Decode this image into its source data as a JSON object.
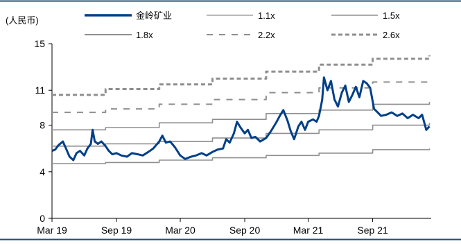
{
  "chart_data": {
    "type": "line",
    "unit_label": "(人民币)",
    "yticks": [
      "0",
      "4",
      "8",
      "11",
      "15"
    ],
    "ylim": [
      0,
      15
    ],
    "xticks": [
      "Mar 19",
      "Sep 19",
      "Mar 20",
      "Sep 20",
      "Mar 21",
      "Sep 21"
    ],
    "x_start": "2019-03",
    "x_end": "2022-02",
    "grid": false,
    "legend_position": "top",
    "colors": {
      "price": "#003f88",
      "band_solid": "#8f8f8f",
      "band_dashed": "#8f8f8f",
      "frame": "#1f4e79"
    },
    "series": [
      {
        "name": "金岭矿业",
        "style": "price",
        "points": [
          [
            "2019-03-01",
            5.8
          ],
          [
            "2019-03-10",
            5.9
          ],
          [
            "2019-03-20",
            6.3
          ],
          [
            "2019-04-01",
            6.6
          ],
          [
            "2019-04-10",
            6.0
          ],
          [
            "2019-04-20",
            5.3
          ],
          [
            "2019-05-01",
            5.0
          ],
          [
            "2019-05-10",
            5.6
          ],
          [
            "2019-05-20",
            5.8
          ],
          [
            "2019-06-01",
            5.4
          ],
          [
            "2019-06-10",
            6.0
          ],
          [
            "2019-06-20",
            6.4
          ],
          [
            "2019-06-25",
            7.6
          ],
          [
            "2019-07-01",
            6.6
          ],
          [
            "2019-07-10",
            6.4
          ],
          [
            "2019-07-20",
            6.6
          ],
          [
            "2019-08-01",
            6.2
          ],
          [
            "2019-08-10",
            5.8
          ],
          [
            "2019-08-20",
            5.5
          ],
          [
            "2019-09-01",
            5.6
          ],
          [
            "2019-09-15",
            5.4
          ],
          [
            "2019-10-01",
            5.3
          ],
          [
            "2019-10-15",
            5.6
          ],
          [
            "2019-11-01",
            5.5
          ],
          [
            "2019-11-15",
            5.4
          ],
          [
            "2019-12-01",
            5.7
          ],
          [
            "2019-12-15",
            6.0
          ],
          [
            "2020-01-01",
            6.6
          ],
          [
            "2020-01-10",
            7.1
          ],
          [
            "2020-01-20",
            6.5
          ],
          [
            "2020-02-01",
            6.6
          ],
          [
            "2020-02-15",
            6.1
          ],
          [
            "2020-03-01",
            5.4
          ],
          [
            "2020-03-15",
            5.1
          ],
          [
            "2020-04-01",
            5.3
          ],
          [
            "2020-04-15",
            5.4
          ],
          [
            "2020-05-01",
            5.6
          ],
          [
            "2020-05-15",
            5.4
          ],
          [
            "2020-06-01",
            5.7
          ],
          [
            "2020-06-15",
            5.9
          ],
          [
            "2020-07-01",
            6.0
          ],
          [
            "2020-07-10",
            6.8
          ],
          [
            "2020-07-20",
            6.5
          ],
          [
            "2020-08-01",
            7.3
          ],
          [
            "2020-08-10",
            8.3
          ],
          [
            "2020-08-20",
            7.8
          ],
          [
            "2020-09-01",
            7.3
          ],
          [
            "2020-09-10",
            7.6
          ],
          [
            "2020-09-20",
            6.9
          ],
          [
            "2020-10-01",
            7.0
          ],
          [
            "2020-10-15",
            6.6
          ],
          [
            "2020-11-01",
            6.9
          ],
          [
            "2020-11-15",
            7.5
          ],
          [
            "2020-12-01",
            8.3
          ],
          [
            "2020-12-10",
            8.8
          ],
          [
            "2020-12-20",
            9.3
          ],
          [
            "2021-01-01",
            8.4
          ],
          [
            "2021-01-10",
            7.5
          ],
          [
            "2021-01-20",
            6.8
          ],
          [
            "2021-02-01",
            7.9
          ],
          [
            "2021-02-10",
            8.3
          ],
          [
            "2021-02-20",
            7.6
          ],
          [
            "2021-03-01",
            8.3
          ],
          [
            "2021-03-15",
            8.5
          ],
          [
            "2021-03-25",
            8.3
          ],
          [
            "2021-04-01",
            8.8
          ],
          [
            "2021-04-10",
            10.2
          ],
          [
            "2021-04-15",
            12.1
          ],
          [
            "2021-04-25",
            11.0
          ],
          [
            "2021-05-05",
            11.8
          ],
          [
            "2021-05-15",
            10.2
          ],
          [
            "2021-05-25",
            9.6
          ],
          [
            "2021-06-05",
            10.8
          ],
          [
            "2021-06-15",
            11.4
          ],
          [
            "2021-06-25",
            10.0
          ],
          [
            "2021-07-05",
            10.6
          ],
          [
            "2021-07-15",
            11.3
          ],
          [
            "2021-07-25",
            10.4
          ],
          [
            "2021-08-05",
            11.8
          ],
          [
            "2021-08-15",
            11.6
          ],
          [
            "2021-08-25",
            11.2
          ],
          [
            "2021-09-05",
            9.4
          ],
          [
            "2021-09-15",
            9.1
          ],
          [
            "2021-09-25",
            8.8
          ],
          [
            "2021-10-10",
            8.9
          ],
          [
            "2021-10-25",
            9.1
          ],
          [
            "2021-11-10",
            8.8
          ],
          [
            "2021-11-25",
            9.0
          ],
          [
            "2021-12-10",
            8.6
          ],
          [
            "2021-12-25",
            8.9
          ],
          [
            "2022-01-10",
            8.6
          ],
          [
            "2022-01-20",
            8.9
          ],
          [
            "2022-02-01",
            7.6
          ],
          [
            "2022-02-10",
            7.9
          ]
        ]
      },
      {
        "name": "1.1x",
        "style": "band_solid",
        "points": [
          [
            "2019-03-01",
            4.7
          ],
          [
            "2019-08-01",
            4.8
          ],
          [
            "2020-01-01",
            5.0
          ],
          [
            "2020-06-01",
            5.2
          ],
          [
            "2020-11-01",
            5.4
          ],
          [
            "2021-04-01",
            5.6
          ],
          [
            "2021-09-01",
            5.9
          ],
          [
            "2022-02-10",
            6.0
          ]
        ]
      },
      {
        "name": "1.5x",
        "style": "band_solid",
        "points": [
          [
            "2019-03-01",
            6.2
          ],
          [
            "2019-08-01",
            6.4
          ],
          [
            "2020-01-01",
            6.6
          ],
          [
            "2020-06-01",
            6.9
          ],
          [
            "2020-11-01",
            7.3
          ],
          [
            "2021-04-01",
            7.6
          ],
          [
            "2021-09-01",
            8.0
          ],
          [
            "2022-02-10",
            8.2
          ]
        ]
      },
      {
        "name": "1.8x",
        "style": "band_solid",
        "points": [
          [
            "2019-03-01",
            7.6
          ],
          [
            "2019-08-01",
            7.8
          ],
          [
            "2020-01-01",
            8.2
          ],
          [
            "2020-06-01",
            8.5
          ],
          [
            "2020-11-01",
            9.0
          ],
          [
            "2021-04-01",
            9.3
          ],
          [
            "2021-09-01",
            9.8
          ],
          [
            "2022-02-10",
            10.0
          ]
        ]
      },
      {
        "name": "2.2x",
        "style": "band_dashed",
        "points": [
          [
            "2019-03-01",
            9.1
          ],
          [
            "2019-08-01",
            9.4
          ],
          [
            "2020-01-01",
            9.8
          ],
          [
            "2020-06-01",
            10.2
          ],
          [
            "2020-11-01",
            10.8
          ],
          [
            "2021-04-01",
            11.2
          ],
          [
            "2021-09-01",
            11.7
          ],
          [
            "2022-02-10",
            12.0
          ]
        ]
      },
      {
        "name": "2.6x",
        "style": "band_dashed_heavy",
        "points": [
          [
            "2019-03-01",
            10.6
          ],
          [
            "2019-08-01",
            11.1
          ],
          [
            "2020-01-01",
            11.5
          ],
          [
            "2020-06-01",
            12.0
          ],
          [
            "2020-11-01",
            12.6
          ],
          [
            "2021-04-01",
            13.2
          ],
          [
            "2021-09-01",
            13.7
          ],
          [
            "2022-02-10",
            14.0
          ]
        ]
      }
    ]
  }
}
